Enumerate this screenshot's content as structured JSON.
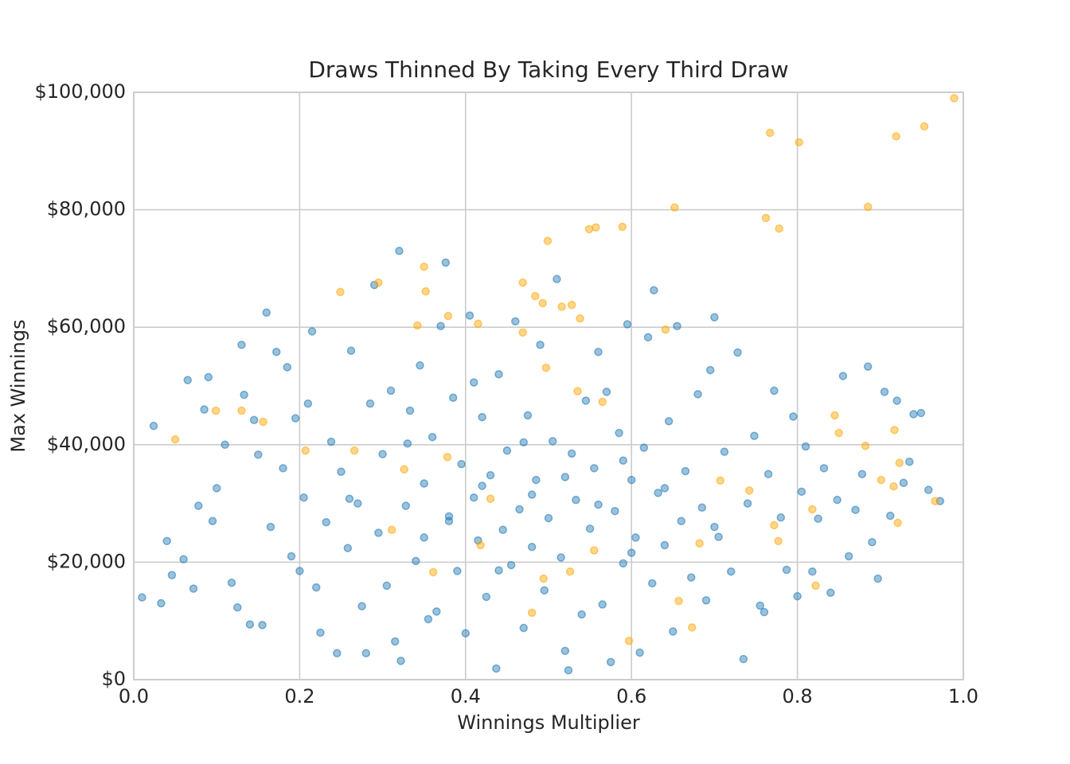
{
  "chart_data": {
    "type": "scatter",
    "title": "Draws Thinned By Taking Every Third Draw",
    "x_label": "Winnings Multiplier",
    "y_label": "Max Winnings",
    "xlim": [
      0,
      1
    ],
    "ylim": [
      0,
      100000
    ],
    "xticks": [
      {
        "value": 0,
        "label": "0.0"
      },
      0.2,
      0.4,
      0.6,
      0.8,
      {
        "value": 1,
        "label": "1.0"
      }
    ],
    "yticks": [
      {
        "value": 0,
        "label": "$0"
      },
      {
        "value": 20000,
        "label": "$20,000"
      },
      {
        "value": 40000,
        "label": "$40,000"
      },
      {
        "value": 60000,
        "label": "$60,000"
      },
      {
        "value": 80000,
        "label": "$80,000"
      },
      {
        "value": 100000,
        "label": "$100,000"
      }
    ],
    "grid": true,
    "series": [
      {
        "color": "#1f77b4",
        "x": [
          0.01,
          0.024,
          0.033,
          0.04,
          0.046,
          0.06,
          0.065,
          0.072,
          0.078,
          0.085,
          0.09,
          0.095,
          0.1,
          0.11,
          0.118,
          0.125,
          0.13,
          0.133,
          0.14,
          0.145,
          0.15,
          0.155,
          0.16,
          0.165,
          0.172,
          0.18,
          0.185,
          0.19,
          0.195,
          0.2,
          0.205,
          0.21,
          0.215,
          0.22,
          0.225,
          0.232,
          0.238,
          0.245,
          0.25,
          0.258,
          0.262,
          0.27,
          0.275,
          0.28,
          0.285,
          0.29,
          0.295,
          0.3,
          0.305,
          0.31,
          0.315,
          0.32,
          0.322,
          0.328,
          0.333,
          0.34,
          0.345,
          0.35,
          0.355,
          0.36,
          0.365,
          0.37,
          0.376,
          0.38,
          0.385,
          0.39,
          0.395,
          0.4,
          0.405,
          0.41,
          0.415,
          0.42,
          0.425,
          0.43,
          0.437,
          0.44,
          0.445,
          0.45,
          0.455,
          0.46,
          0.465,
          0.47,
          0.475,
          0.48,
          0.485,
          0.49,
          0.495,
          0.5,
          0.505,
          0.51,
          0.515,
          0.52,
          0.524,
          0.528,
          0.533,
          0.54,
          0.545,
          0.55,
          0.555,
          0.56,
          0.565,
          0.57,
          0.575,
          0.58,
          0.585,
          0.59,
          0.595,
          0.6,
          0.605,
          0.61,
          0.615,
          0.62,
          0.625,
          0.627,
          0.632,
          0.64,
          0.645,
          0.65,
          0.655,
          0.66,
          0.665,
          0.672,
          0.68,
          0.685,
          0.69,
          0.695,
          0.7,
          0.705,
          0.712,
          0.72,
          0.728,
          0.735,
          0.74,
          0.748,
          0.755,
          0.76,
          0.765,
          0.772,
          0.78,
          0.787,
          0.795,
          0.8,
          0.805,
          0.81,
          0.818,
          0.825,
          0.832,
          0.84,
          0.848,
          0.855,
          0.862,
          0.87,
          0.878,
          0.885,
          0.89,
          0.897,
          0.905,
          0.912,
          0.92,
          0.928,
          0.935,
          0.94,
          0.949,
          0.958,
          0.972,
          0.33,
          0.42,
          0.48,
          0.56,
          0.6,
          0.38,
          0.44,
          0.52,
          0.64,
          0.35,
          0.47,
          0.59,
          0.7,
          0.26,
          0.41
        ],
        "values": [
          14000,
          43200,
          13000,
          23600,
          17800,
          20500,
          51000,
          15500,
          29600,
          46000,
          51500,
          27000,
          32600,
          40000,
          16500,
          12300,
          57000,
          48500,
          9400,
          44200,
          38300,
          9300,
          62500,
          26000,
          55800,
          36000,
          53200,
          21000,
          44500,
          18500,
          31000,
          47000,
          59300,
          15700,
          8000,
          26800,
          40500,
          4500,
          35400,
          22400,
          56000,
          30000,
          12500,
          4500,
          47000,
          67200,
          25000,
          38400,
          16000,
          49200,
          6500,
          73000,
          3200,
          29600,
          45800,
          20200,
          53500,
          33400,
          10300,
          41300,
          11600,
          60200,
          71000,
          27000,
          48000,
          18500,
          36700,
          7900,
          62000,
          31000,
          23700,
          44700,
          14100,
          34800,
          1900,
          52000,
          25500,
          39000,
          19500,
          61000,
          29000,
          8800,
          45000,
          22600,
          34000,
          57000,
          15200,
          27500,
          40600,
          68200,
          20800,
          4900,
          1600,
          38500,
          30600,
          11100,
          47500,
          25700,
          36000,
          55800,
          12800,
          49000,
          3000,
          28700,
          42000,
          19800,
          60500,
          34000,
          24200,
          4600,
          39500,
          58300,
          16400,
          66300,
          31800,
          22900,
          44000,
          8200,
          60200,
          27000,
          35500,
          17400,
          48600,
          29300,
          13500,
          52700,
          61700,
          24300,
          38800,
          18400,
          55700,
          3500,
          30000,
          41500,
          12600,
          11500,
          35000,
          49200,
          27600,
          18700,
          44800,
          14200,
          32000,
          39700,
          18400,
          27400,
          36000,
          14800,
          30600,
          51700,
          21000,
          28900,
          35000,
          53300,
          23400,
          17200,
          49000,
          27900,
          47500,
          33500,
          37100,
          45200,
          45400,
          32300,
          30400,
          40200,
          33000,
          31500,
          29800,
          21600,
          27800,
          18600,
          34500,
          32600,
          24200,
          40400,
          37300,
          26000,
          30800,
          50600
        ]
      },
      {
        "color": "#ffa500",
        "x": [
          0.989,
          0.767,
          0.802,
          0.919,
          0.953,
          0.885,
          0.762,
          0.778,
          0.652,
          0.589,
          0.549,
          0.557,
          0.499,
          0.35,
          0.352,
          0.295,
          0.249,
          0.469,
          0.484,
          0.493,
          0.516,
          0.528,
          0.538,
          0.641,
          0.342,
          0.379,
          0.415,
          0.469,
          0.05,
          0.099,
          0.13,
          0.156,
          0.207,
          0.266,
          0.326,
          0.311,
          0.361,
          0.418,
          0.43,
          0.48,
          0.494,
          0.526,
          0.555,
          0.597,
          0.657,
          0.673,
          0.707,
          0.742,
          0.772,
          0.777,
          0.822,
          0.818,
          0.845,
          0.85,
          0.882,
          0.901,
          0.916,
          0.917,
          0.921,
          0.923,
          0.966,
          0.682,
          0.378,
          0.565,
          0.535,
          0.497
        ],
        "values": [
          99000,
          93100,
          91500,
          92500,
          94200,
          80500,
          78600,
          76800,
          80400,
          77100,
          76700,
          77000,
          74700,
          70300,
          66100,
          67600,
          66000,
          67600,
          65300,
          64100,
          63500,
          63800,
          61500,
          59600,
          60300,
          61900,
          60600,
          59100,
          40900,
          45800,
          45800,
          43900,
          39000,
          39000,
          35800,
          25500,
          18300,
          22900,
          30800,
          11400,
          17200,
          18400,
          22000,
          6600,
          13400,
          8900,
          33900,
          32200,
          26300,
          23600,
          16000,
          29000,
          45000,
          42000,
          39800,
          34000,
          32900,
          42500,
          26700,
          36900,
          30400,
          23200,
          37900,
          47300,
          49100,
          53100
        ]
      }
    ]
  }
}
